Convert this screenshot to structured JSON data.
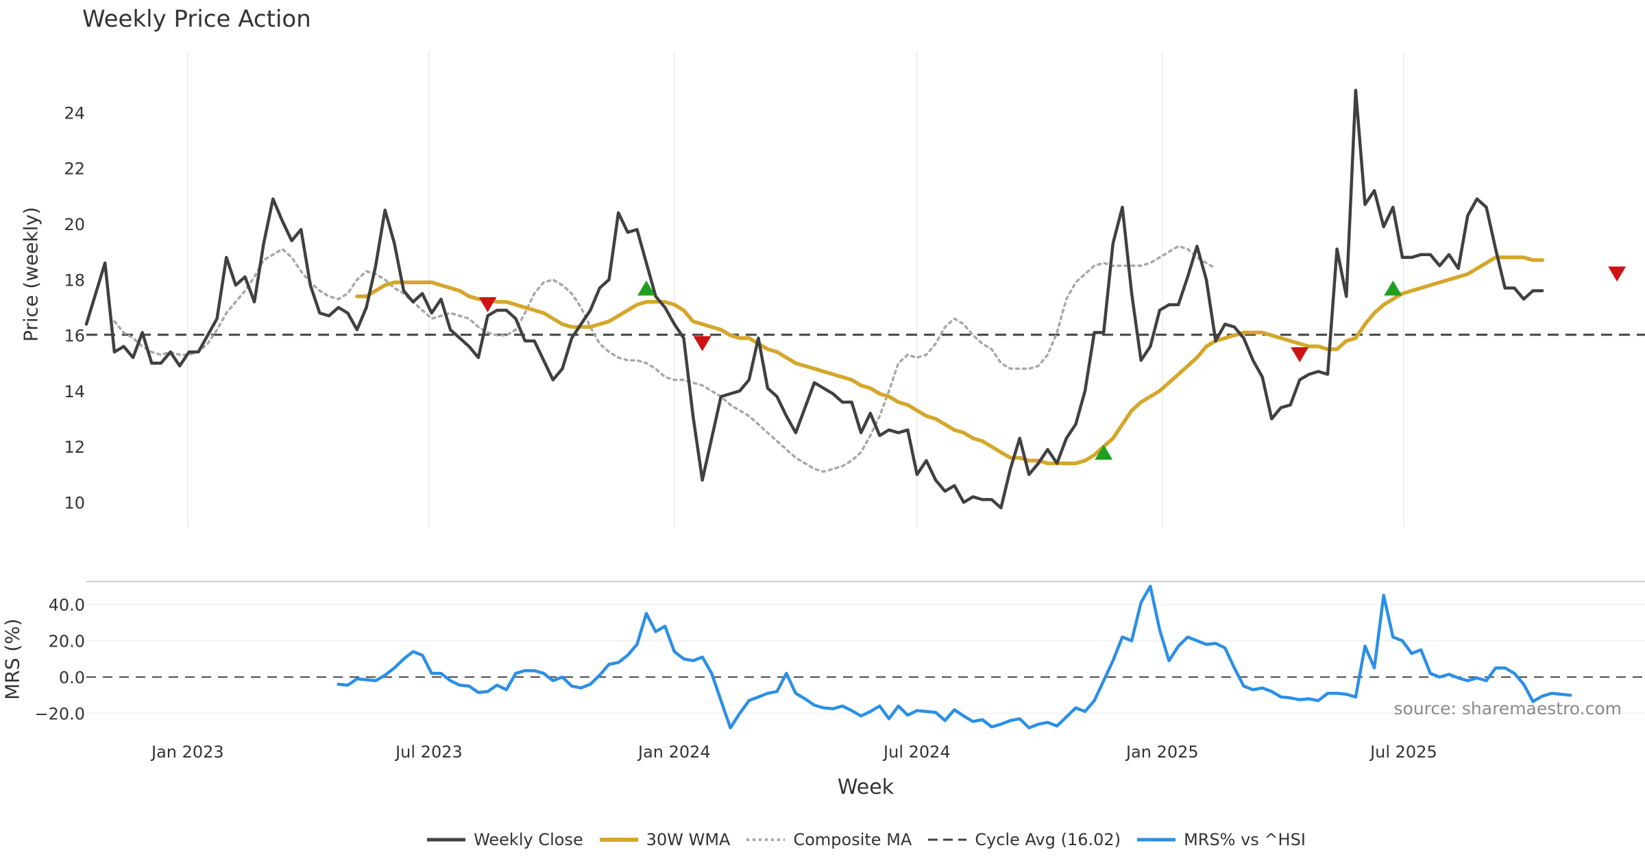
{
  "chart_data": [
    {
      "type": "line",
      "title": "Weekly Price Action",
      "xlabel": "Week",
      "ylabel": "Price (weekly)",
      "ylim": [
        9.1,
        26.2
      ],
      "yticks": [
        10,
        12,
        14,
        16,
        18,
        20,
        22,
        24
      ],
      "x_range": [
        "2022-10-17",
        "2025-12-29"
      ],
      "xticks": [
        {
          "date": "2023-01-01",
          "label": "Jan 2023"
        },
        {
          "date": "2023-07-01",
          "label": "Jul 2023"
        },
        {
          "date": "2024-01-01",
          "label": "Jan 2024"
        },
        {
          "date": "2024-07-01",
          "label": "Jul 2024"
        },
        {
          "date": "2025-01-01",
          "label": "Jan 2025"
        },
        {
          "date": "2025-07-01",
          "label": "Jul 2025"
        }
      ],
      "cycle_avg": 16.02,
      "series": [
        {
          "name": "Weekly Close",
          "color": "#404040",
          "style": "solid",
          "start": "2022-10-17",
          "step_days": 7,
          "values": [
            16.4,
            17.5,
            18.6,
            15.4,
            15.6,
            15.2,
            16.1,
            15.0,
            15.0,
            15.4,
            14.9,
            15.4,
            15.4,
            16.0,
            16.6,
            18.8,
            17.8,
            18.1,
            17.2,
            19.3,
            20.9,
            20.1,
            19.4,
            19.8,
            17.8,
            16.8,
            16.7,
            17.0,
            16.8,
            16.2,
            17.0,
            18.5,
            20.5,
            19.3,
            17.6,
            17.2,
            17.5,
            16.8,
            17.3,
            16.2,
            15.9,
            15.6,
            15.2,
            16.7,
            16.9,
            16.9,
            16.6,
            15.8,
            15.8,
            15.1,
            14.4,
            14.8,
            15.9,
            16.4,
            16.9,
            17.7,
            18.0,
            20.4,
            19.7,
            19.8,
            18.6,
            17.4,
            17.0,
            16.4,
            15.9,
            13.1,
            10.8,
            12.3,
            13.8,
            13.9,
            14.0,
            14.4,
            15.9,
            14.1,
            13.8,
            13.1,
            12.5,
            13.4,
            14.3,
            14.1,
            13.9,
            13.6,
            13.6,
            12.5,
            13.2,
            12.4,
            12.6,
            12.5,
            12.6,
            11.0,
            11.5,
            10.8,
            10.4,
            10.6,
            10.0,
            10.2,
            10.1,
            10.1,
            9.8,
            11.2,
            12.3,
            11.0,
            11.4,
            11.9,
            11.4,
            12.3,
            12.8,
            14.0,
            16.1,
            16.1,
            19.3,
            20.6,
            17.5,
            15.1,
            15.6,
            16.9,
            17.1,
            17.1,
            18.1,
            19.2,
            18.0,
            15.8,
            16.4,
            16.3,
            15.9,
            15.1,
            14.5,
            13.0,
            13.4,
            13.5,
            14.4,
            14.6,
            14.7,
            14.6,
            19.1,
            17.4,
            24.8,
            20.7,
            21.2,
            19.9,
            20.6,
            18.8,
            18.8,
            18.9,
            18.9,
            18.5,
            18.9,
            18.4,
            20.3,
            20.9,
            20.6,
            19.1,
            17.7,
            17.7,
            17.3,
            17.6,
            17.6
          ]
        },
        {
          "name": "30W WMA",
          "color": "#d4a72c",
          "style": "solid",
          "start": "2023-05-08",
          "step_days": 7,
          "values": [
            17.4,
            17.4,
            17.6,
            17.8,
            17.9,
            17.9,
            17.9,
            17.9,
            17.9,
            17.8,
            17.7,
            17.6,
            17.4,
            17.3,
            17.3,
            17.2,
            17.2,
            17.1,
            17.0,
            16.9,
            16.8,
            16.6,
            16.4,
            16.3,
            16.3,
            16.3,
            16.4,
            16.5,
            16.7,
            16.9,
            17.1,
            17.2,
            17.2,
            17.2,
            17.1,
            16.9,
            16.5,
            16.4,
            16.3,
            16.2,
            16.0,
            15.9,
            15.9,
            15.7,
            15.5,
            15.4,
            15.2,
            15.0,
            14.9,
            14.8,
            14.7,
            14.6,
            14.5,
            14.4,
            14.2,
            14.1,
            13.9,
            13.8,
            13.6,
            13.5,
            13.3,
            13.1,
            13.0,
            12.8,
            12.6,
            12.5,
            12.3,
            12.2,
            12.0,
            11.8,
            11.6,
            11.6,
            11.5,
            11.5,
            11.4,
            11.4,
            11.4,
            11.4,
            11.5,
            11.7,
            12.0,
            12.3,
            12.8,
            13.3,
            13.6,
            13.8,
            14.0,
            14.3,
            14.6,
            14.9,
            15.2,
            15.6,
            15.8,
            15.9,
            16.0,
            16.1,
            16.1,
            16.1,
            16.0,
            15.9,
            15.8,
            15.7,
            15.6,
            15.6,
            15.5,
            15.5,
            15.8,
            15.9,
            16.4,
            16.8,
            17.1,
            17.3,
            17.5,
            17.6,
            17.7,
            17.8,
            17.9,
            18.0,
            18.1,
            18.2,
            18.4,
            18.6,
            18.8,
            18.8,
            18.8,
            18.8,
            18.7,
            18.7
          ]
        },
        {
          "name": "Composite MA",
          "color": "#a8a8a8",
          "style": "dotted",
          "start": "2022-11-07",
          "step_days": 7,
          "values": [
            16.5,
            16.1,
            15.9,
            15.6,
            15.4,
            15.3,
            15.4,
            15.3,
            15.3,
            15.4,
            15.7,
            16.2,
            16.8,
            17.2,
            17.6,
            18.1,
            18.7,
            18.9,
            19.1,
            18.8,
            18.3,
            17.9,
            17.6,
            17.4,
            17.3,
            17.5,
            18.0,
            18.3,
            18.2,
            18.0,
            17.7,
            17.5,
            17.2,
            16.9,
            16.6,
            16.7,
            16.8,
            16.7,
            16.6,
            16.3,
            16.1,
            16.0,
            16.0,
            16.2,
            16.8,
            17.5,
            17.9,
            18.0,
            17.8,
            17.5,
            17.0,
            16.3,
            15.7,
            15.4,
            15.2,
            15.1,
            15.1,
            15.0,
            14.8,
            14.5,
            14.4,
            14.4,
            14.3,
            14.2,
            14.0,
            13.8,
            13.5,
            13.3,
            13.1,
            12.8,
            12.5,
            12.2,
            11.9,
            11.6,
            11.4,
            11.2,
            11.1,
            11.2,
            11.3,
            11.5,
            11.8,
            12.4,
            13.1,
            14.0,
            15.0,
            15.3,
            15.2,
            15.3,
            15.7,
            16.3,
            16.6,
            16.4,
            16.0,
            15.7,
            15.5,
            15.0,
            14.8,
            14.8,
            14.8,
            14.9,
            15.3,
            16.1,
            17.3,
            17.9,
            18.2,
            18.5,
            18.6,
            18.5,
            18.5,
            18.5,
            18.5,
            18.6,
            18.8,
            19.0,
            19.2,
            19.1,
            18.8,
            18.6,
            18.4
          ]
        }
      ],
      "signals": {
        "buy": [
          {
            "date": "2023-12-11",
            "y": 17.7
          },
          {
            "date": "2024-11-18",
            "y": 11.8
          },
          {
            "date": "2025-06-23",
            "y": 17.7
          }
        ],
        "sell": [
          {
            "date": "2023-08-14",
            "y": 17.1
          },
          {
            "date": "2024-01-22",
            "y": 15.7
          },
          {
            "date": "2025-04-14",
            "y": 15.3
          },
          {
            "date": "2025-12-08",
            "y": 18.2
          }
        ],
        "buy_color": "#1ea01e",
        "sell_color": "#cc1414"
      }
    },
    {
      "type": "line",
      "title": "",
      "xlabel": "Week",
      "ylabel": "MRS (%)",
      "ylim": [
        -27,
        53
      ],
      "yticks": [
        -20,
        0,
        20,
        40
      ],
      "ytick_labels": [
        "−20.0",
        "0.0",
        "20.0",
        "40.0"
      ],
      "zero_line": 0,
      "series": [
        {
          "name": "MRS% vs ^HSI",
          "color": "#2b8fe6",
          "style": "solid",
          "start": "2023-04-24",
          "step_days": 7,
          "values": [
            -4,
            -4.5,
            -1,
            -1.5,
            -2,
            1,
            5,
            10,
            14,
            12,
            2,
            2,
            -2,
            -4.5,
            -5,
            -8.5,
            -8,
            -4.5,
            -7,
            2,
            3.5,
            3.5,
            2,
            -2,
            0,
            -5,
            -6,
            -4,
            1,
            7,
            8,
            12,
            18,
            35,
            25,
            28,
            14,
            10,
            9,
            11,
            2,
            -13,
            -28,
            -20,
            -13,
            -11,
            -9,
            -8,
            2,
            -9,
            -12,
            -15.5,
            -17,
            -17.5,
            -16,
            -18.5,
            -21.5,
            -19,
            -16,
            -23,
            -16,
            -21,
            -18.5,
            -19,
            -19.5,
            -24,
            -18,
            -21.5,
            -24.5,
            -23.5,
            -27.5,
            -26,
            -24,
            -23,
            -28,
            -26,
            -25,
            -27,
            -22,
            -17,
            -19,
            -13,
            -2,
            9,
            22,
            20,
            41,
            50,
            26,
            9,
            17,
            22,
            20,
            18,
            18.5,
            16,
            5,
            -5,
            -7,
            -6,
            -8,
            -11,
            -11.5,
            -12.5,
            -12,
            -13,
            -9,
            -9,
            -9.5,
            -11,
            17,
            5,
            45,
            22,
            20,
            13,
            15,
            2,
            0,
            1.5,
            -0.5,
            -2,
            -0.5,
            -2,
            5,
            5,
            2,
            -4,
            -13.5,
            -10.5,
            -9,
            -9.5,
            -10
          ]
        }
      ]
    }
  ],
  "source_note": "source: sharemaestro.com",
  "legend": [
    {
      "label": "Weekly Close",
      "color": "#404040",
      "style": "solid"
    },
    {
      "label": "30W WMA",
      "color": "#d4a72c",
      "style": "solid"
    },
    {
      "label": "Composite MA",
      "color": "#a8a8a8",
      "style": "dotted"
    },
    {
      "label": "Cycle Avg (16.02)",
      "color": "#404040",
      "style": "dashed"
    },
    {
      "label": "MRS% vs ^HSI",
      "color": "#2b8fe6",
      "style": "solid"
    }
  ]
}
